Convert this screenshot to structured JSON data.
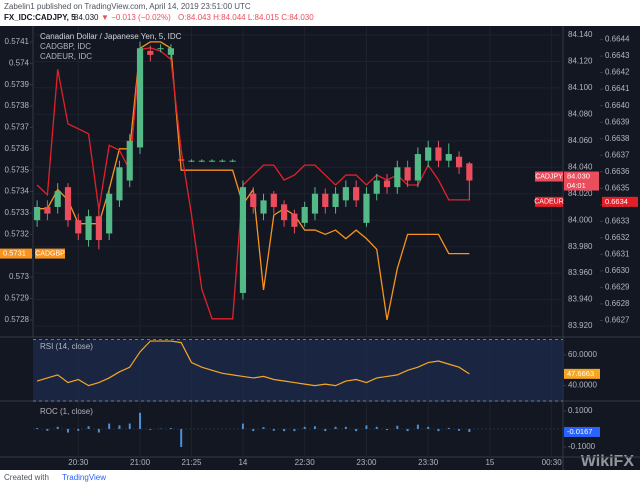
{
  "header": {
    "publisher": "Zabelin1 published on TradingView.com, April 14, 2019 23:51:00 UTC",
    "symbol": "FX_IDC:CADJPY, 5",
    "price": "84.030",
    "change": "▼ −0.013 (−0.02%)",
    "ohlc": "O:84.043 H:84.044 L:84.015 C:84.030"
  },
  "footer": {
    "created_with": "Created with",
    "brand": "TradingView",
    "watermark": "WikiFX"
  },
  "chart_data": [
    {
      "type": "candlestick",
      "title": "Canadian Dollar / Japanese Yen, 5, IDC",
      "xlim": [
        -0.4,
        51.1
      ],
      "xticks": [
        {
          "value": 4,
          "label": "20:30"
        },
        {
          "value": 10,
          "label": "21:00"
        },
        {
          "value": 15,
          "label": "21:25"
        },
        {
          "value": 20,
          "label": "14"
        },
        {
          "value": 26,
          "label": "22:30"
        },
        {
          "value": 32,
          "label": "23:00"
        },
        {
          "value": 38,
          "label": "23:30"
        },
        {
          "value": 44,
          "label": "15"
        },
        {
          "value": 50,
          "label": "00:30"
        }
      ],
      "open": [
        84.0,
        84.01,
        84.01,
        84.025,
        84.0,
        83.985,
        84.003,
        83.99,
        84.015,
        84.03,
        84.055,
        84.128,
        84.13,
        84.125,
        84.046,
        84.045,
        84.045,
        84.045,
        84.045,
        84.045,
        83.945,
        84.02,
        84.005,
        84.02,
        84.012,
        84.005,
        83.998,
        84.005,
        84.02,
        84.01,
        84.015,
        84.025,
        83.998,
        84.02,
        84.03,
        84.025,
        84.04,
        84.03,
        84.045,
        84.055,
        84.045,
        84.048,
        84.043
      ],
      "high": [
        84.015,
        84.015,
        84.028,
        84.028,
        84.005,
        84.008,
        84.008,
        84.025,
        84.045,
        84.065,
        84.135,
        84.132,
        84.133,
        84.133,
        84.046,
        84.046,
        84.046,
        84.046,
        84.046,
        84.046,
        84.03,
        84.025,
        84.02,
        84.022,
        84.015,
        84.008,
        84.014,
        84.025,
        84.024,
        84.025,
        84.03,
        84.03,
        84.025,
        84.035,
        84.035,
        84.045,
        84.045,
        84.055,
        84.06,
        84.06,
        84.058,
        84.052,
        84.044
      ],
      "low": [
        83.995,
        84.0,
        84.005,
        83.995,
        83.985,
        83.98,
        83.978,
        83.985,
        84.01,
        84.025,
        84.05,
        84.12,
        84.127,
        84.122,
        84.045,
        84.044,
        84.044,
        84.044,
        84.044,
        84.044,
        83.94,
        84.005,
        84.0,
        84.005,
        83.995,
        83.99,
        83.995,
        84.0,
        84.005,
        84.005,
        84.01,
        84.01,
        83.995,
        84.015,
        84.02,
        84.02,
        84.025,
        84.025,
        84.04,
        84.04,
        84.04,
        84.035,
        84.015
      ],
      "close": [
        84.01,
        84.005,
        84.022,
        84.0,
        83.99,
        84.003,
        83.985,
        84.02,
        84.04,
        84.06,
        84.13,
        84.125,
        84.13,
        84.13,
        84.045,
        84.045,
        84.045,
        84.045,
        84.045,
        84.045,
        84.025,
        84.01,
        84.015,
        84.01,
        84.0,
        83.995,
        84.01,
        84.02,
        84.01,
        84.02,
        84.025,
        84.015,
        84.02,
        84.03,
        84.025,
        84.04,
        84.03,
        84.05,
        84.055,
        84.045,
        84.05,
        84.04,
        84.03
      ],
      "up_color": "#53b987",
      "down_color": "#eb4d5c",
      "ylim": [
        83.9117,
        84.1453
      ],
      "yticks": [
        {
          "value": 84.14,
          "label": "84.140"
        },
        {
          "value": 84.12,
          "label": "84.120"
        },
        {
          "value": 84.1,
          "label": "84.100"
        },
        {
          "value": 84.08,
          "label": "84.080"
        },
        {
          "value": 84.06,
          "label": "84.060"
        },
        {
          "value": 84.04,
          "label": "84.040"
        },
        {
          "value": 84.02,
          "label": "84.020"
        },
        {
          "value": 84.0,
          "label": "84.000"
        },
        {
          "value": 83.98,
          "label": "83.980"
        },
        {
          "value": 83.96,
          "label": "83.960"
        },
        {
          "value": 83.94,
          "label": "83.940"
        },
        {
          "value": 83.92,
          "label": "83.920"
        }
      ],
      "y2lim": [
        0.57272,
        0.574165
      ],
      "y2ticks": [
        0.5741,
        0.574,
        0.5739,
        0.5738,
        0.5737,
        0.5736,
        0.5735,
        0.5734,
        0.5733,
        0.5732,
        0.5731,
        0.573,
        0.5729,
        0.5728
      ],
      "y3lim": [
        0.6626,
        0.66447
      ],
      "y3ticks": [
        {
          "value": 0.6644,
          "label": "0.6644"
        },
        {
          "value": 0.6643,
          "label": "0.6643"
        },
        {
          "value": 0.6642,
          "label": "0.6642"
        },
        {
          "value": 0.6641,
          "label": "0.6641"
        },
        {
          "value": 0.664,
          "label": "0.6640"
        },
        {
          "value": 0.6639,
          "label": "0.6639"
        },
        {
          "value": 0.6638,
          "label": "0.6638"
        },
        {
          "value": 0.6637,
          "label": "0.6637"
        },
        {
          "value": 0.6636,
          "label": "0.6636"
        },
        {
          "value": 0.6635,
          "label": "0.6635"
        },
        {
          "value": 0.6634,
          "label": "0.6634"
        },
        {
          "value": 0.6633,
          "label": "0.6633"
        },
        {
          "value": 0.6632,
          "label": "0.6632"
        },
        {
          "value": 0.6631,
          "label": "0.6631"
        },
        {
          "value": 0.663,
          "label": "0.6630"
        },
        {
          "value": 0.6629,
          "label": "0.6629"
        },
        {
          "value": 0.6628,
          "label": "0.6628"
        },
        {
          "value": 0.6627,
          "label": "0.6627"
        }
      ],
      "grid": true,
      "series": [
        {
          "name": "CADGBP, IDC",
          "color": "#f7931e",
          "axis": "y2",
          "values": [
            0.57332,
            0.57332,
            0.57341,
            0.57336,
            0.57325,
            0.57325,
            0.57325,
            0.57341,
            0.5736,
            0.5736,
            0.57407,
            0.5741,
            0.5741,
            0.57407,
            0.5735,
            0.5735,
            0.5735,
            0.5735,
            0.5735,
            0.5735,
            0.57334,
            0.57341,
            0.57294,
            0.57329,
            0.57332,
            0.57329,
            0.57322,
            0.57322,
            0.5732,
            0.57322,
            0.57318,
            0.57322,
            0.57318,
            0.57313,
            0.5728,
            0.57304,
            0.5732,
            0.5732,
            0.5732,
            0.5732,
            0.57311,
            0.57311,
            0.57311
          ]
        },
        {
          "name": "CADEUR, IDC",
          "color": "#e3202a",
          "axis": "y3",
          "values": [
            0.66352,
            0.66346,
            0.66422,
            0.66389,
            0.66386,
            0.66383,
            0.66337,
            0.66376,
            0.66373,
            0.66361,
            0.66434,
            0.66435,
            0.66433,
            0.66428,
            0.66373,
            0.66334,
            0.66289,
            0.66271,
            0.66271,
            0.66271,
            0.66352,
            0.66358,
            0.66364,
            0.66364,
            0.66355,
            0.66358,
            0.66364,
            0.66364,
            0.66358,
            0.66352,
            0.66358,
            0.66358,
            0.66352,
            0.66358,
            0.66355,
            0.66358,
            0.66352,
            0.66352,
            0.66364,
            0.66355,
            0.66343,
            0.66343,
            0.66343
          ]
        }
      ],
      "price_tags": [
        {
          "label": "CADJPY",
          "value_label": "84.030",
          "countdown": "04:01"
        },
        {
          "label": "CADEUR",
          "value_label": "0.6634"
        },
        {
          "label": "CADGBP",
          "value_label": "0.5731"
        }
      ]
    },
    {
      "type": "line",
      "title": "RSI (14, close)",
      "color": "#f5a623",
      "values": [
        43,
        45,
        47,
        42,
        44,
        40,
        42,
        45,
        49,
        52,
        62,
        69,
        69,
        69,
        68,
        55,
        52,
        50,
        48,
        47,
        46,
        45,
        46,
        44,
        43,
        42,
        41,
        40,
        41,
        40,
        43,
        44,
        42,
        45,
        46,
        47,
        50,
        52,
        55,
        56,
        54,
        52,
        47.6663
      ],
      "last_label": "47.6663",
      "ylim": [
        30,
        71
      ],
      "levels": [
        70,
        30
      ],
      "yticks": [
        {
          "value": 60,
          "label": "60.0000"
        },
        {
          "value": 40,
          "label": "40.0000"
        }
      ]
    },
    {
      "type": "bar",
      "title": "ROC (1, close)",
      "color": "#4a90d9",
      "values": [
        0.005,
        -0.01,
        0.012,
        -0.02,
        -0.01,
        0.015,
        -0.02,
        0.03,
        0.02,
        0.03,
        0.09,
        -0.005,
        0.002,
        0.005,
        -0.1,
        0,
        0,
        0,
        0,
        0,
        0.03,
        -0.012,
        0.01,
        -0.01,
        -0.012,
        -0.012,
        0.012,
        0.015,
        -0.012,
        0.012,
        0.012,
        -0.012,
        0.02,
        0.012,
        -0.006,
        0.018,
        -0.012,
        0.024,
        0.012,
        -0.012,
        0.006,
        -0.01,
        -0.0167
      ],
      "last_label": "-0.0167",
      "ylim": [
        -0.156,
        0.15
      ],
      "yticks": [
        {
          "value": 0.1,
          "label": "0.1000"
        },
        {
          "value": -0.1,
          "label": "-0.1000"
        }
      ]
    }
  ]
}
